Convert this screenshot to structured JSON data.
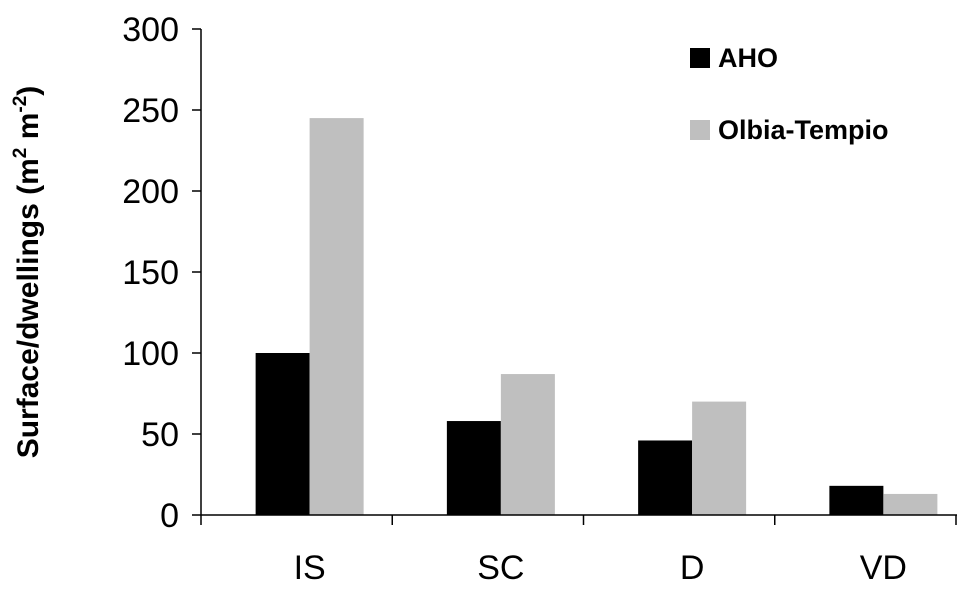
{
  "chart_data": {
    "type": "bar",
    "categories": [
      "IS",
      "SC",
      "D",
      "VD"
    ],
    "series": [
      {
        "name": "AHO",
        "color": "#000000",
        "values": [
          100,
          58,
          46,
          18
        ]
      },
      {
        "name": "Olbia-Tempio",
        "color": "#bfbfbf",
        "values": [
          245,
          87,
          70,
          13
        ]
      }
    ],
    "ylabel": {
      "main": "Surface/dwellings (m",
      "sup1": "2",
      "mid": " m",
      "sup2": "-2",
      "end": ")"
    },
    "ylim": [
      0,
      300
    ],
    "yticks": [
      0,
      50,
      100,
      150,
      200,
      250,
      300
    ],
    "grid": false,
    "legend_position": "top-right"
  }
}
